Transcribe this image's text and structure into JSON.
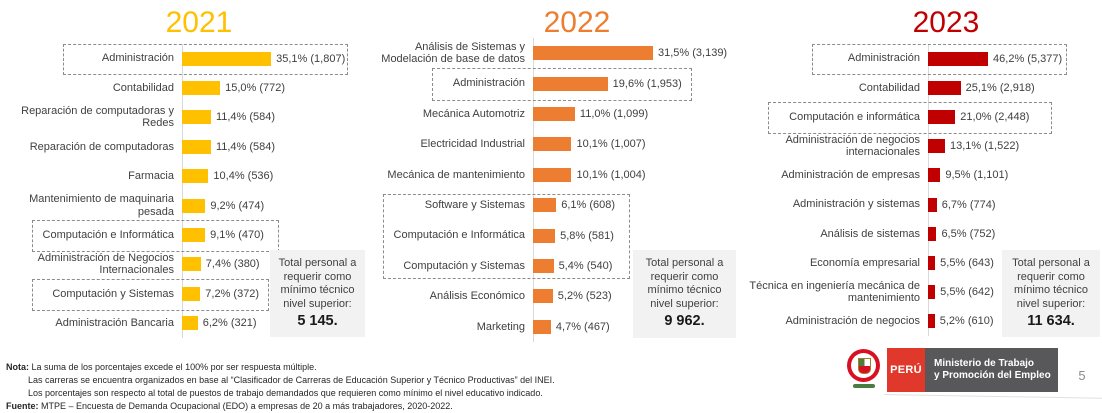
{
  "page": {
    "number": "5"
  },
  "chart_data": [
    {
      "type": "bar",
      "orientation": "horizontal",
      "title": "2021",
      "color": "#FFC000",
      "categories": [
        "Administración",
        "Contabilidad",
        "Reparación de computadoras y Redes",
        "Reparación de computadoras",
        "Farmacia",
        "Mantenimiento de maquinaria pesada",
        "Computación e Informática",
        "Administración de Negocios Internacionales",
        "Computación y Sistemas",
        "Administración Bancaria"
      ],
      "values": [
        35.1,
        15.0,
        11.4,
        11.4,
        10.4,
        9.2,
        9.1,
        7.4,
        7.2,
        6.2
      ],
      "counts": [
        1807,
        772,
        584,
        584,
        536,
        474,
        470,
        380,
        372,
        321
      ],
      "value_labels": [
        "35,1% (1,807)",
        "15,0% (772)",
        "11,4% (584)",
        "11,4% (584)",
        "10,4% (536)",
        "9,2% (474)",
        "9,1% (470)",
        "7,4% (380)",
        "7,2% (372)",
        "6,2% (321)"
      ],
      "highlighted_categories": [
        "Administración",
        "Computación e Informática",
        "Computación y Sistemas"
      ],
      "total_note": {
        "text": "Total personal a requerir como mínimo técnico nivel superior:",
        "total": "5 145."
      }
    },
    {
      "type": "bar",
      "orientation": "horizontal",
      "title": "2022",
      "color": "#ED7D31",
      "categories": [
        "Análisis de Sistemas y Modelación de base de datos",
        "Administración",
        "Mecánica Automotriz",
        "Electricidad Industrial",
        "Mecánica de mantenimiento",
        "Software y Sistemas",
        "Computación e Informática",
        "Computación y Sistemas",
        "Análisis Económico",
        "Marketing"
      ],
      "values": [
        31.5,
        19.6,
        11.0,
        10.1,
        10.1,
        6.1,
        5.8,
        5.4,
        5.2,
        4.7
      ],
      "counts": [
        3139,
        1953,
        1099,
        1007,
        1004,
        608,
        581,
        540,
        523,
        467
      ],
      "value_labels": [
        "31,5% (3,139)",
        "19,6% (1,953)",
        "11,0% (1,099)",
        "10,1% (1,007)",
        "10,1% (1,004)",
        "6,1% (608)",
        "5,8% (581)",
        "5,4% (540)",
        "5,2% (523)",
        "4,7% (467)"
      ],
      "highlighted_categories": [
        "Administración",
        "Software y Sistemas",
        "Computación e Informática",
        "Computación y Sistemas"
      ],
      "total_note": {
        "text": "Total personal a requerir como mínimo técnico nivel superior:",
        "total": "9 962."
      }
    },
    {
      "type": "bar",
      "orientation": "horizontal",
      "title": "2023",
      "color": "#C00000",
      "categories": [
        "Administración",
        "Contabilidad",
        "Computación e informática",
        "Administración de negocios internacionales",
        "Administración de empresas",
        "Administración y sistemas",
        "Análisis de sistemas",
        "Economía empresarial",
        "Técnica en ingeniería mecánica de mantenimiento",
        "Administración de negocios"
      ],
      "values": [
        46.2,
        25.1,
        21.0,
        13.1,
        9.5,
        6.7,
        6.5,
        5.5,
        5.5,
        5.2
      ],
      "counts": [
        5377,
        2918,
        2448,
        1522,
        1101,
        774,
        752,
        643,
        642,
        610
      ],
      "value_labels": [
        "46,2% (5,377)",
        "25,1% (2,918)",
        "21,0% (2,448)",
        "13,1% (1,522)",
        "9,5% (1,101)",
        "6,7% (774)",
        "6,5% (752)",
        "5,5% (643)",
        "5,5% (642)",
        "5,2% (610)"
      ],
      "highlighted_categories": [
        "Administración",
        "Computación e informática"
      ],
      "total_note": {
        "text": "Total personal a requerir como mínimo técnico nivel superior:",
        "total": "11 634."
      }
    }
  ],
  "footer": {
    "nota_label": "Nota:",
    "nota_lines": [
      "La suma de los porcentajes excede el 100% por ser respuesta múltiple.",
      "Las carreras se encuentra organizados en base al “Clasificador de Carreras de Educación Superior y Técnico Productivas” del INEI.",
      "Los porcentajes son respecto al total de puestos de trabajo demandados que requieren como mínimo el nivel educativo indicado."
    ],
    "fuente_label": "Fuente:",
    "fuente_text": "MTPE – Encuesta de Demanda Ocupacional (EDO) a empresas de 20 a más trabajadores, 2020-2022."
  },
  "logo": {
    "country": "PERÚ",
    "ministry_line1": "Ministerio de Trabajo",
    "ministry_line2": "y Promoción del Empleo"
  }
}
